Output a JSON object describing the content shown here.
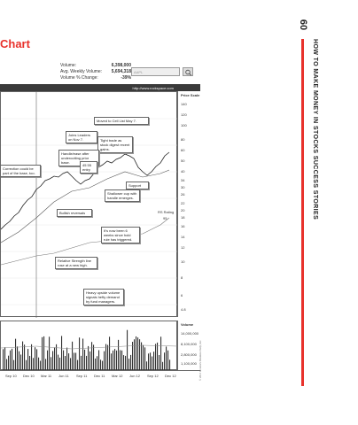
{
  "header": {
    "chart_title": "Chart"
  },
  "stats": {
    "volume_label": "Volume:",
    "volume_value": "6,398,000",
    "avg_label": "Avg. Weekly Volume:",
    "avg_value": "5,694,318",
    "pct_label": "Volume % Change:",
    "pct_value": "-39%"
  },
  "search": {
    "placeholder": "AAPL"
  },
  "url": "http://www.rockspace.com",
  "scale": {
    "title": "Price Scale",
    "ticks": [
      "140",
      "120",
      "100",
      "80",
      "60",
      "50",
      "40",
      "34",
      "30",
      "26",
      "22",
      "20",
      "18",
      "16",
      "14",
      "12",
      "10",
      "8",
      "6",
      "4.8"
    ]
  },
  "volume_scale": {
    "title": "Volume",
    "ticks": [
      "14,000,000",
      "8,100,000",
      "2,800,000",
      "1,100,000"
    ]
  },
  "months": [
    "Sep 10",
    "Dec 10",
    "Mar 11",
    "Jun 11",
    "Sep 11",
    "Dec 11",
    "Mar 12",
    "Jun 12",
    "Sep 12",
    "Dec 12"
  ],
  "callouts": {
    "moved": "Moved to Cell List May 7.",
    "leaders": "Joins Leaders on Nov 7.",
    "tight": "Tight trade as stock digest recent gains.",
    "handle": "Handle/ease after undercutting prior base.",
    "week45": "45 55 entry",
    "correction": "Correction could be part of the base, too.",
    "support": "Support",
    "shallow": "Shallower cup with handle emerges.",
    "bullish": "Bullish reversals",
    "rsrating": "RS Rating",
    "rsvalue": "95",
    "newbase": "It's now been 6 weeks since hold rule has triggered.",
    "rsline": "Relative Strength line rose at a new high.",
    "heavy": "Heavy upside volume signals hefty demand by fund managers."
  },
  "copyright": "© 2013 Investor's Business Daily, Inc.",
  "page_number": "60",
  "book_title": "HOW TO MAKE MONEY IN STOCKS SUCCESS STORIES"
}
